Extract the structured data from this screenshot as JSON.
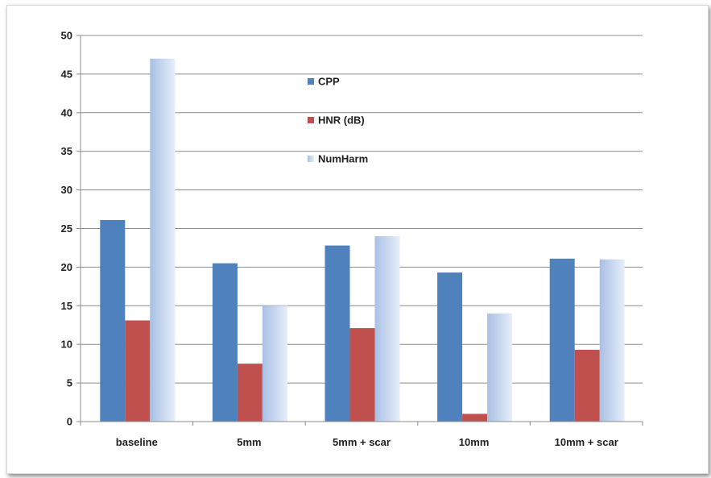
{
  "chart_data": {
    "type": "bar",
    "title": "",
    "xlabel": "",
    "ylabel": "",
    "categories": [
      "baseline",
      "5mm",
      "5mm + scar",
      "10mm",
      "10mm + scar"
    ],
    "series": [
      {
        "name": "CPP",
        "color": "#4f81bd",
        "values": [
          26.1,
          20.5,
          22.8,
          19.3,
          21.1
        ]
      },
      {
        "name": "HNR (dB)",
        "color": "#c0504d",
        "values": [
          13.1,
          7.5,
          12.1,
          1.0,
          9.3
        ]
      },
      {
        "name": "NumHarm",
        "color": "#b9cdea",
        "gradient": true,
        "values": [
          47,
          15,
          24,
          14,
          21
        ]
      }
    ],
    "ylim": [
      0,
      50
    ],
    "yticks": [
      0,
      5,
      10,
      15,
      20,
      25,
      30,
      35,
      40,
      45,
      50
    ],
    "grid": true,
    "legend": "inside-top-center"
  }
}
